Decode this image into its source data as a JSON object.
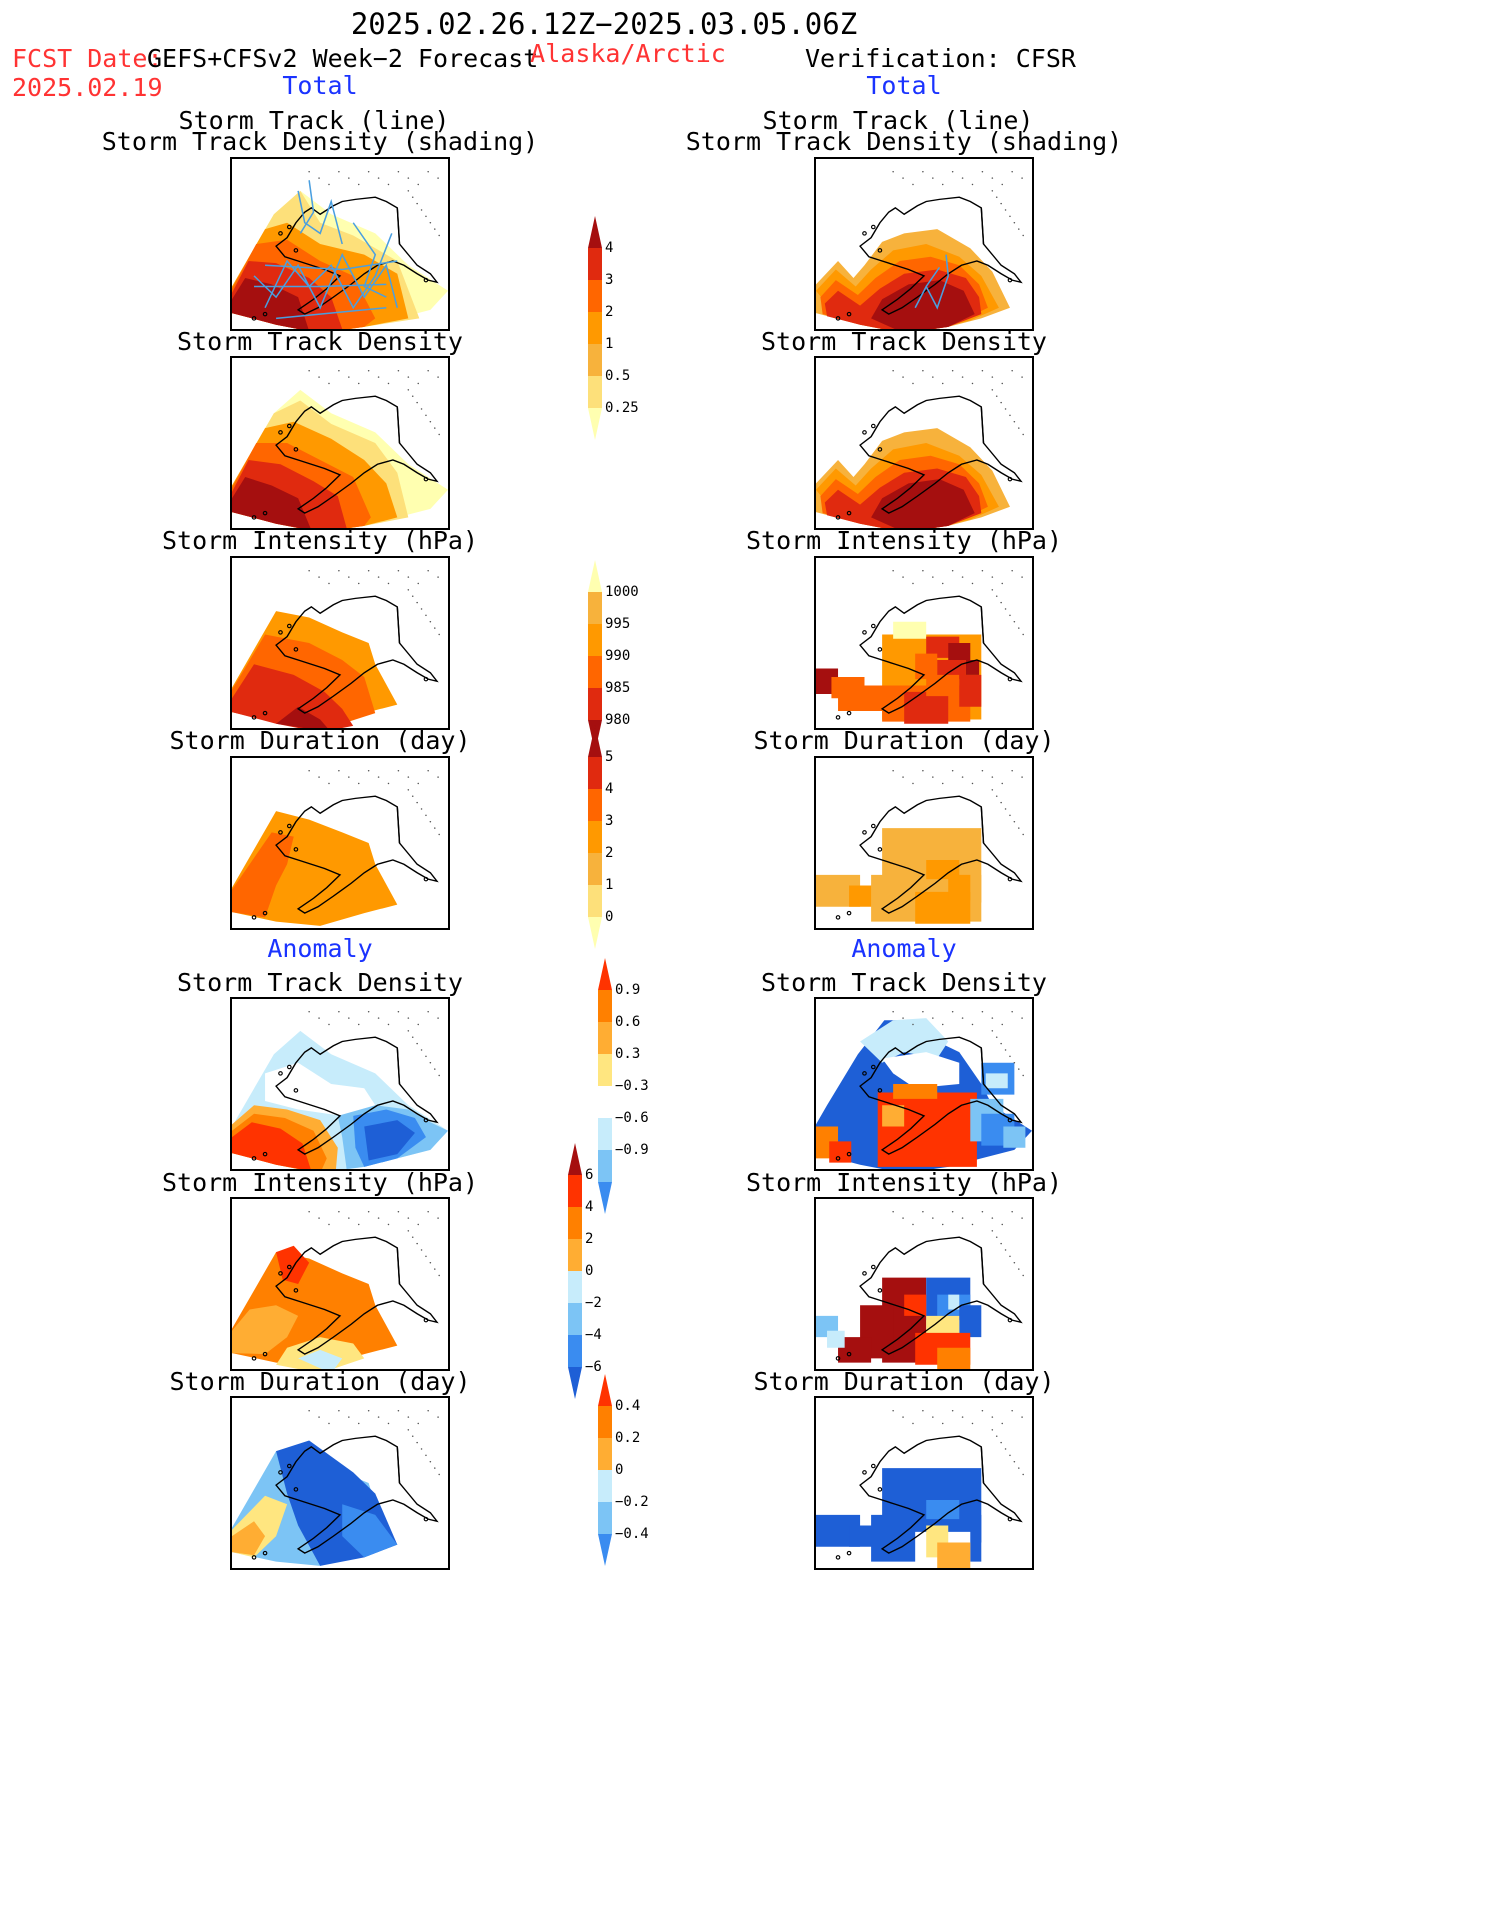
{
  "header": {
    "period": "2025.02.26.12Z−2025.03.05.06Z",
    "region": "Alaska/Arctic",
    "fcst_label": "FCST Date:",
    "fcst_model": "GEFS+CFSv2 Week−2 Forecast",
    "fcst_date": "2025.02.19",
    "verification": "Verification: CFSR"
  },
  "sections": {
    "total": "Total",
    "anomaly": "Anomaly"
  },
  "titles": {
    "track_line": "Storm Track (line)",
    "track_density_shading": "Storm Track Density (shading)",
    "track_density": "Storm Track Density",
    "intensity": "Storm Intensity (hPa)",
    "duration": "Storm Duration (day)"
  },
  "colorbars": {
    "density": [
      "4",
      "3",
      "2",
      "1",
      "0.5",
      "0.25"
    ],
    "intensity": [
      "1000",
      "995",
      "990",
      "985",
      "980"
    ],
    "duration": [
      "5",
      "4",
      "3",
      "2",
      "1",
      "0"
    ],
    "density_anom": [
      "0.9",
      "0.6",
      "0.3",
      "−0.3",
      "−0.6",
      "−0.9"
    ],
    "intensity_anom": [
      "6",
      "4",
      "2",
      "0",
      "−2",
      "−4",
      "−6"
    ],
    "duration_anom": [
      "0.4",
      "0.2",
      "0",
      "−0.2",
      "−0.4"
    ]
  },
  "colors": {
    "seq": [
      "#ffffb0",
      "#fde07a",
      "#f7b23c",
      "#ff9900",
      "#ff6600",
      "#e02a0f",
      "#a50f0f"
    ],
    "div": [
      "#1e5fd6",
      "#3a8cf0",
      "#7cc4f5",
      "#c7ecfb",
      "#ffffff",
      "#ffe680",
      "#ffad33",
      "#ff8000",
      "#ff3300",
      "#a50f0f"
    ],
    "track": "#4a9fe0"
  }
}
